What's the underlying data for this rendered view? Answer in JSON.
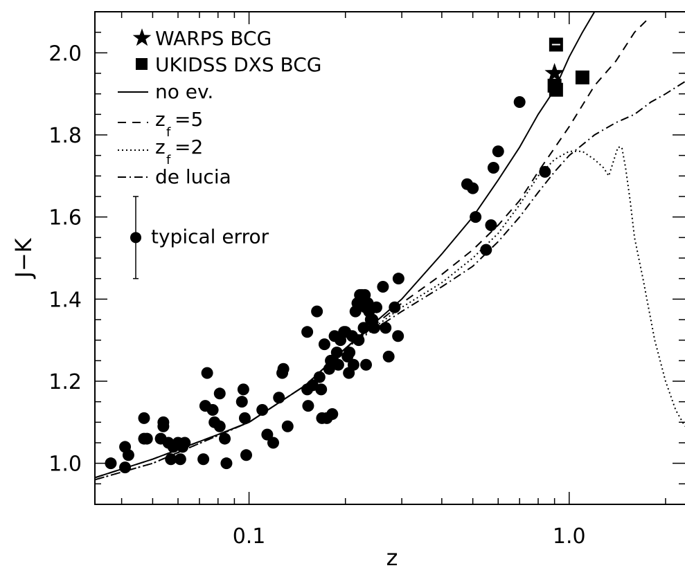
{
  "chart_data": {
    "type": "scatter",
    "title": "",
    "xlabel": "z",
    "ylabel": "J−K",
    "x_scale": "log",
    "xlim": [
      0.033,
      2.3
    ],
    "ylim": [
      0.9,
      2.1
    ],
    "x_ticks": [
      {
        "value": 0.1,
        "label": "0.1"
      },
      {
        "value": 1.0,
        "label": "1.0"
      }
    ],
    "y_ticks": [
      {
        "value": 1.0,
        "label": "1.0"
      },
      {
        "value": 1.2,
        "label": "1.2"
      },
      {
        "value": 1.4,
        "label": "1.4"
      },
      {
        "value": 1.6,
        "label": "1.6"
      },
      {
        "value": 1.8,
        "label": "1.8"
      },
      {
        "value": 2.0,
        "label": "2.0"
      }
    ],
    "grid": false,
    "legend_position": "top-left",
    "legend": [
      {
        "key": "warps",
        "label": "WARPS BCG",
        "marker": "star"
      },
      {
        "key": "dxs",
        "label": "UKIDSS DXS BCG",
        "marker": "square"
      },
      {
        "key": "noev",
        "label": "no ev.",
        "line": "solid"
      },
      {
        "key": "zf5",
        "label": "=5",
        "prefix": "z",
        "subscript": "f",
        "line": "dashed"
      },
      {
        "key": "zf2",
        "label": "=2",
        "prefix": "z",
        "subscript": "f",
        "line": "dotted"
      },
      {
        "key": "delucia",
        "label": "de lucia",
        "line": "dashdot"
      }
    ],
    "typical_error": {
      "label": "typical error",
      "y": 1.55,
      "err": 0.1
    },
    "points": [
      [
        0.037,
        1.0
      ],
      [
        0.041,
        0.99
      ],
      [
        0.041,
        1.04
      ],
      [
        0.042,
        1.02
      ],
      [
        0.047,
        1.11
      ],
      [
        0.047,
        1.06
      ],
      [
        0.048,
        1.06
      ],
      [
        0.053,
        1.06
      ],
      [
        0.054,
        1.1
      ],
      [
        0.054,
        1.09
      ],
      [
        0.056,
        1.05
      ],
      [
        0.057,
        1.01
      ],
      [
        0.058,
        1.04
      ],
      [
        0.06,
        1.05
      ],
      [
        0.061,
        1.01
      ],
      [
        0.062,
        1.04
      ],
      [
        0.063,
        1.05
      ],
      [
        0.072,
        1.01
      ],
      [
        0.073,
        1.14
      ],
      [
        0.074,
        1.22
      ],
      [
        0.077,
        1.13
      ],
      [
        0.078,
        1.1
      ],
      [
        0.081,
        1.17
      ],
      [
        0.081,
        1.09
      ],
      [
        0.084,
        1.06
      ],
      [
        0.085,
        1.0
      ],
      [
        0.095,
        1.15
      ],
      [
        0.096,
        1.18
      ],
      [
        0.097,
        1.11
      ],
      [
        0.098,
        1.02
      ],
      [
        0.11,
        1.13
      ],
      [
        0.114,
        1.07
      ],
      [
        0.119,
        1.05
      ],
      [
        0.124,
        1.16
      ],
      [
        0.127,
        1.22
      ],
      [
        0.128,
        1.23
      ],
      [
        0.132,
        1.09
      ],
      [
        0.152,
        1.32
      ],
      [
        0.152,
        1.18
      ],
      [
        0.153,
        1.14
      ],
      [
        0.158,
        1.19
      ],
      [
        0.163,
        1.37
      ],
      [
        0.166,
        1.21
      ],
      [
        0.168,
        1.18
      ],
      [
        0.169,
        1.11
      ],
      [
        0.172,
        1.29
      ],
      [
        0.175,
        1.11
      ],
      [
        0.178,
        1.23
      ],
      [
        0.18,
        1.25
      ],
      [
        0.182,
        1.12
      ],
      [
        0.183,
        1.25
      ],
      [
        0.185,
        1.31
      ],
      [
        0.188,
        1.27
      ],
      [
        0.19,
        1.24
      ],
      [
        0.193,
        1.3
      ],
      [
        0.198,
        1.32
      ],
      [
        0.2,
        1.32
      ],
      [
        0.203,
        1.26
      ],
      [
        0.205,
        1.22
      ],
      [
        0.206,
        1.27
      ],
      [
        0.21,
        1.31
      ],
      [
        0.212,
        1.24
      ],
      [
        0.215,
        1.37
      ],
      [
        0.218,
        1.39
      ],
      [
        0.22,
        1.3
      ],
      [
        0.222,
        1.41
      ],
      [
        0.225,
        1.41
      ],
      [
        0.228,
        1.33
      ],
      [
        0.23,
        1.41
      ],
      [
        0.231,
        1.38
      ],
      [
        0.232,
        1.24
      ],
      [
        0.235,
        1.39
      ],
      [
        0.237,
        1.37
      ],
      [
        0.24,
        1.35
      ],
      [
        0.243,
        1.35
      ],
      [
        0.246,
        1.33
      ],
      [
        0.25,
        1.38
      ],
      [
        0.262,
        1.43
      ],
      [
        0.267,
        1.33
      ],
      [
        0.273,
        1.26
      ],
      [
        0.285,
        1.38
      ],
      [
        0.292,
        1.31
      ],
      [
        0.293,
        1.45
      ],
      [
        0.48,
        1.68
      ],
      [
        0.5,
        1.67
      ],
      [
        0.51,
        1.6
      ],
      [
        0.55,
        1.52
      ],
      [
        0.57,
        1.58
      ],
      [
        0.58,
        1.72
      ],
      [
        0.6,
        1.76
      ],
      [
        0.7,
        1.88
      ],
      [
        0.84,
        1.71
      ]
    ],
    "warps_bcg": [
      [
        0.9,
        1.95
      ]
    ],
    "dxs_bcg": [
      [
        0.91,
        2.02
      ],
      [
        0.9,
        1.92
      ],
      [
        0.91,
        1.91
      ],
      [
        1.1,
        1.94
      ]
    ],
    "curves": {
      "noev": {
        "style": "solid",
        "points": [
          [
            0.033,
            0.965
          ],
          [
            0.05,
            1.01
          ],
          [
            0.08,
            1.07
          ],
          [
            0.1,
            1.1
          ],
          [
            0.15,
            1.19
          ],
          [
            0.2,
            1.28
          ],
          [
            0.3,
            1.4
          ],
          [
            0.4,
            1.51
          ],
          [
            0.5,
            1.6
          ],
          [
            0.6,
            1.69
          ],
          [
            0.7,
            1.77
          ],
          [
            0.8,
            1.85
          ],
          [
            0.9,
            1.91
          ],
          [
            1.0,
            1.99
          ],
          [
            1.1,
            2.05
          ],
          [
            1.2,
            2.1
          ]
        ]
      },
      "zf5": {
        "style": "dashed",
        "points": [
          [
            0.033,
            0.965
          ],
          [
            0.05,
            1.01
          ],
          [
            0.08,
            1.07
          ],
          [
            0.1,
            1.1
          ],
          [
            0.15,
            1.19
          ],
          [
            0.2,
            1.28
          ],
          [
            0.3,
            1.39
          ],
          [
            0.4,
            1.46
          ],
          [
            0.5,
            1.52
          ],
          [
            0.6,
            1.58
          ],
          [
            0.7,
            1.64
          ],
          [
            0.8,
            1.71
          ],
          [
            1.0,
            1.82
          ],
          [
            1.2,
            1.92
          ],
          [
            1.4,
            1.98
          ],
          [
            1.6,
            2.05
          ],
          [
            1.75,
            2.08
          ]
        ]
      },
      "zf2": {
        "style": "dotted",
        "points": [
          [
            0.033,
            0.96
          ],
          [
            0.05,
            1.0
          ],
          [
            0.1,
            1.1
          ],
          [
            0.15,
            1.19
          ],
          [
            0.2,
            1.28
          ],
          [
            0.3,
            1.38
          ],
          [
            0.4,
            1.44
          ],
          [
            0.5,
            1.5
          ],
          [
            0.6,
            1.56
          ],
          [
            0.7,
            1.63
          ],
          [
            0.8,
            1.7
          ],
          [
            0.9,
            1.74
          ],
          [
            1.0,
            1.76
          ],
          [
            1.1,
            1.76
          ],
          [
            1.2,
            1.74
          ],
          [
            1.28,
            1.72
          ],
          [
            1.33,
            1.7
          ],
          [
            1.38,
            1.74
          ],
          [
            1.42,
            1.77
          ],
          [
            1.46,
            1.77
          ],
          [
            1.5,
            1.72
          ],
          [
            1.55,
            1.64
          ],
          [
            1.6,
            1.55
          ],
          [
            1.7,
            1.45
          ],
          [
            1.85,
            1.3
          ],
          [
            2.0,
            1.2
          ],
          [
            2.15,
            1.13
          ],
          [
            2.3,
            1.09
          ]
        ]
      },
      "delucia": {
        "style": "dashdot",
        "points": [
          [
            0.033,
            0.96
          ],
          [
            0.05,
            1.0
          ],
          [
            0.1,
            1.1
          ],
          [
            0.15,
            1.19
          ],
          [
            0.2,
            1.28
          ],
          [
            0.3,
            1.37
          ],
          [
            0.4,
            1.43
          ],
          [
            0.5,
            1.48
          ],
          [
            0.6,
            1.54
          ],
          [
            0.7,
            1.6
          ],
          [
            0.8,
            1.66
          ],
          [
            0.9,
            1.71
          ],
          [
            1.0,
            1.75
          ],
          [
            1.2,
            1.8
          ],
          [
            1.4,
            1.83
          ],
          [
            1.6,
            1.85
          ],
          [
            1.8,
            1.88
          ],
          [
            2.0,
            1.9
          ],
          [
            2.3,
            1.93
          ]
        ]
      }
    }
  }
}
